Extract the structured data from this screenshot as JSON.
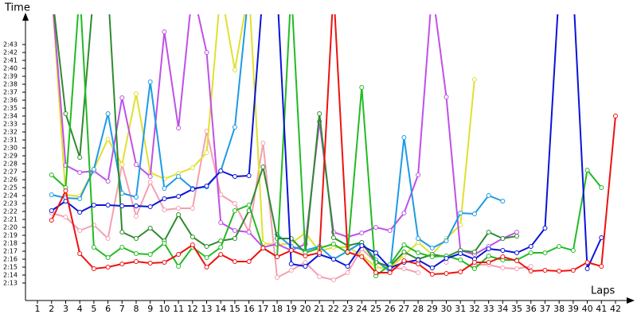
{
  "chart_data": {
    "type": "line",
    "y_label": "Time",
    "x_label": "Laps",
    "xlim": [
      0.15,
      42.96
    ],
    "xticks": [
      1,
      2,
      3,
      4,
      5,
      6,
      7,
      8,
      9,
      10,
      11,
      12,
      13,
      14,
      15,
      16,
      17,
      18,
      19,
      20,
      21,
      22,
      23,
      24,
      25,
      26,
      27,
      28,
      29,
      30,
      31,
      32,
      33,
      34,
      35,
      36,
      37,
      38,
      39,
      40,
      41,
      42
    ],
    "x": [
      1,
      2,
      3,
      4,
      5,
      6,
      7,
      8,
      9,
      10,
      11,
      12,
      13,
      14,
      15,
      16,
      17,
      18,
      19,
      20,
      21,
      22,
      23,
      24,
      25,
      26,
      27,
      28,
      29,
      30,
      31,
      32,
      33,
      34,
      35,
      36,
      37,
      38,
      39,
      40,
      41,
      42
    ],
    "ylim": [
      130.8,
      165.6
    ],
    "yticks": [
      {
        "value": 133,
        "label": "2:13"
      },
      {
        "value": 134,
        "label": "2:14"
      },
      {
        "value": 135,
        "label": "2:15"
      },
      {
        "value": 136,
        "label": "2:16"
      },
      {
        "value": 137,
        "label": "2:17"
      },
      {
        "value": 138,
        "label": "2:18"
      },
      {
        "value": 139,
        "label": "2:19"
      },
      {
        "value": 140,
        "label": "2:20"
      },
      {
        "value": 141,
        "label": "2:21"
      },
      {
        "value": 142,
        "label": "2:22"
      },
      {
        "value": 143,
        "label": "2:23"
      },
      {
        "value": 144,
        "label": "2:24"
      },
      {
        "value": 145,
        "label": "2:25"
      },
      {
        "value": 146,
        "label": "2:26"
      },
      {
        "value": 147,
        "label": "2:27"
      },
      {
        "value": 148,
        "label": "2:28"
      },
      {
        "value": 149,
        "label": "2:29"
      },
      {
        "value": 150,
        "label": "2:30"
      },
      {
        "value": 151,
        "label": "2:31"
      },
      {
        "value": 152,
        "label": "2:32"
      },
      {
        "value": 153,
        "label": "2:33"
      },
      {
        "value": 154,
        "label": "2:34"
      },
      {
        "value": 155,
        "label": "2:35"
      },
      {
        "value": 156,
        "label": "2:36"
      },
      {
        "value": 157,
        "label": "2:37"
      },
      {
        "value": 158,
        "label": "2:38"
      },
      {
        "value": 159,
        "label": "2:39"
      },
      {
        "value": 160,
        "label": "2:40"
      },
      {
        "value": 161,
        "label": "2:41"
      },
      {
        "value": 162,
        "label": "2:42"
      },
      {
        "value": 163,
        "label": "2:43"
      }
    ],
    "series": [
      {
        "color": "#f4a0b0",
        "values": [
          null,
          141.8,
          141.3,
          139.6,
          140.3,
          138.6,
          147.9,
          141.4,
          145.7,
          142.2,
          142.4,
          142.4,
          152.1,
          144.1,
          143,
          139.4,
          150.6,
          133.7,
          134.6,
          135.6,
          133.8,
          133.4,
          134.3,
          137.3,
          135.6,
          134.9,
          134.8,
          134.3,
          null,
          135.6,
          null,
          135.3,
          135.3,
          134.9,
          134.8,
          135.1,
          null,
          null,
          null,
          null,
          null,
          null
        ]
      },
      {
        "color": "#e0e030",
        "values": [
          null,
          170,
          144.1,
          143.9,
          147.3,
          151.1,
          147.9,
          156.8,
          146.9,
          146.1,
          146.8,
          147.5,
          149.4,
          170,
          159.8,
          170,
          138,
          137.8,
          138,
          139.3,
          137,
          137.5,
          137.5,
          136.5,
          135,
          134.8,
          136.5,
          138.1,
          136.6,
          138.6,
          140.3,
          158.6,
          null,
          null,
          null,
          null,
          null,
          null,
          null,
          null,
          null,
          null
        ]
      },
      {
        "color": "#c050e8",
        "values": [
          null,
          170,
          147.8,
          146.9,
          147.1,
          145.8,
          156.3,
          147.9,
          146.4,
          164.6,
          152.5,
          170,
          162,
          140.6,
          139.6,
          139.4,
          137.5,
          137.9,
          137.1,
          137.9,
          153.3,
          139.4,
          138.8,
          139.3,
          140,
          139.6,
          141.8,
          146.6,
          170,
          156.4,
          137.1,
          136.6,
          137.6,
          138.6,
          139.4,
          null,
          null,
          null,
          null,
          null,
          null,
          null
        ]
      },
      {
        "color": "#1e9ae6",
        "values": [
          null,
          144.1,
          143.7,
          143.6,
          147.3,
          154.3,
          144.3,
          143.8,
          158.3,
          144.9,
          146.4,
          144.9,
          145.1,
          147.1,
          152.6,
          170,
          null,
          139.1,
          137.6,
          137.1,
          137.6,
          136,
          137,
          138.1,
          135.9,
          134.4,
          151.3,
          138.6,
          137.4,
          138.3,
          141.8,
          141.7,
          144,
          143.3,
          null,
          null,
          null,
          null,
          null,
          null,
          null,
          null
        ]
      },
      {
        "color": "#2e8b2e",
        "values": [
          null,
          170,
          154.3,
          148.8,
          170,
          170,
          139.4,
          138.6,
          139.9,
          138.3,
          141.6,
          138.8,
          137.6,
          138.3,
          138.6,
          142.1,
          147.6,
          138.6,
          138.6,
          136.8,
          154.3,
          138.7,
          137.7,
          138.1,
          135.6,
          135.1,
          136.9,
          136,
          136.6,
          136.3,
          137.1,
          136.9,
          139.4,
          138.6,
          138.9,
          null,
          null,
          null,
          null,
          null,
          null,
          null
        ]
      },
      {
        "color": "#22bb22",
        "values": [
          null,
          146.6,
          145,
          170,
          137.5,
          136.2,
          137.5,
          136.7,
          136.6,
          138,
          135.1,
          137.5,
          136.2,
          137.5,
          142.1,
          142.8,
          137.4,
          136.3,
          170,
          136.8,
          137.4,
          137.9,
          136.8,
          157.6,
          133.9,
          135.3,
          137.8,
          136.8,
          136.3,
          136.4,
          135.9,
          134.8,
          136.4,
          135.9,
          135.9,
          136.8,
          136.8,
          137.6,
          137.1,
          147.2,
          145,
          null
        ]
      },
      {
        "color": "#0a14d8",
        "values": [
          null,
          142.1,
          143.3,
          141.9,
          142.8,
          142.8,
          142.7,
          142.7,
          142.6,
          143.6,
          143.9,
          144.8,
          145.2,
          147.1,
          146.4,
          146.5,
          170,
          170,
          135.4,
          135.1,
          136.6,
          136,
          135.1,
          137.7,
          136.8,
          134.9,
          135.6,
          135.9,
          134.9,
          136.1,
          136.7,
          136,
          137.3,
          137.1,
          136.8,
          137.6,
          139.9,
          170,
          170,
          134.8,
          138.7,
          null
        ]
      },
      {
        "color": "#ee1111",
        "values": [
          null,
          140.9,
          144.6,
          136.7,
          134.8,
          135,
          135.4,
          135.7,
          135.5,
          135.6,
          136.6,
          137.8,
          135,
          136.6,
          135.7,
          135.7,
          137.4,
          136.3,
          137.1,
          136.4,
          136.8,
          170,
          136.9,
          136.3,
          134.3,
          134.3,
          135.8,
          135.4,
          134.1,
          134.2,
          134.4,
          135.6,
          135.6,
          136.3,
          135.8,
          134.5,
          134.6,
          134.5,
          134.6,
          135.6,
          135.1,
          154
        ]
      }
    ]
  }
}
